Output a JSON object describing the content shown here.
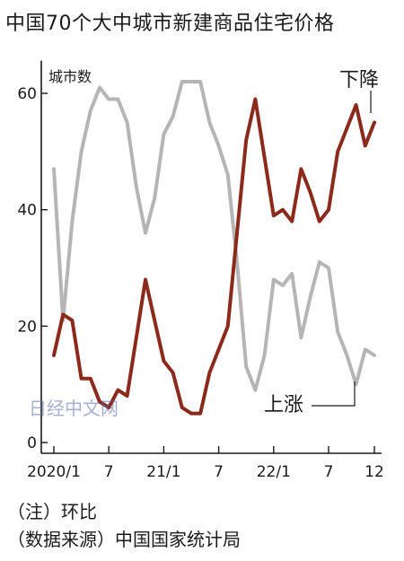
{
  "chart_data": {
    "type": "line",
    "title": "中国70个大中城市新建商品住宅价格",
    "ylabel": "城市数",
    "ylim": [
      0,
      65
    ],
    "yticks": [
      0,
      20,
      40,
      60
    ],
    "xtick_labels": [
      "2020/1",
      "7",
      "21/1",
      "7",
      "22/1",
      "7",
      "12"
    ],
    "xtick_months": [
      "2020-01",
      "2020-07",
      "2021-01",
      "2021-07",
      "2022-01",
      "2022-07",
      "2022-12"
    ],
    "x": [
      "2020-01",
      "2020-02",
      "2020-03",
      "2020-04",
      "2020-05",
      "2020-06",
      "2020-07",
      "2020-08",
      "2020-09",
      "2020-10",
      "2020-11",
      "2020-12",
      "2021-01",
      "2021-02",
      "2021-03",
      "2021-04",
      "2021-05",
      "2021-06",
      "2021-07",
      "2021-08",
      "2021-09",
      "2021-10",
      "2021-11",
      "2021-12",
      "2022-01",
      "2022-02",
      "2022-03",
      "2022-04",
      "2022-05",
      "2022-06",
      "2022-07",
      "2022-08",
      "2022-09",
      "2022-10",
      "2022-11",
      "2022-12"
    ],
    "series": [
      {
        "name": "下降",
        "color": "#8b2a1a",
        "values": [
          15,
          22,
          21,
          11,
          11,
          7,
          6,
          9,
          8,
          18,
          28,
          21,
          14,
          12,
          6,
          5,
          5,
          12,
          16,
          20,
          36,
          52,
          59,
          49,
          39,
          40,
          38,
          47,
          43,
          38,
          40,
          50,
          54,
          58,
          51,
          55
        ]
      },
      {
        "name": "上涨",
        "color": "#b5b5b5",
        "values": [
          47,
          21,
          38,
          50,
          57,
          61,
          59,
          59,
          55,
          44,
          36,
          42,
          53,
          56,
          62,
          62,
          62,
          55,
          51,
          46,
          31,
          13,
          9,
          15,
          28,
          27,
          29,
          18,
          25,
          31,
          30,
          19,
          15,
          10,
          16,
          15
        ]
      }
    ],
    "grid": false,
    "legend": "inline labels"
  },
  "labels": {
    "down": "下降",
    "up": "上涨"
  },
  "watermark": "日经中文网",
  "notes": {
    "note1": "（注）环比",
    "source": "（数据来源）中国国家统计局"
  }
}
